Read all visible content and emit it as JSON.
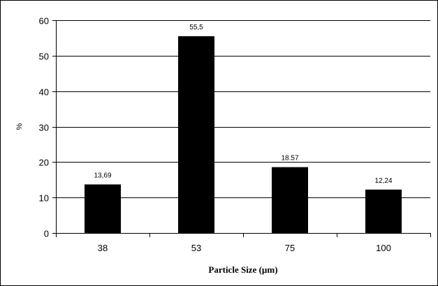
{
  "chart_data": {
    "type": "bar",
    "categories": [
      "38",
      "53",
      "75",
      "100"
    ],
    "values": [
      13.69,
      55.5,
      18.57,
      12.24
    ],
    "data_labels": [
      "13,69",
      "55,5",
      "18.57",
      "12,24"
    ],
    "xlabel": "Particle Size (µm)",
    "ylabel": "%",
    "ylim": [
      0,
      60
    ],
    "yticks": [
      "0",
      "10",
      "20",
      "30",
      "40",
      "50",
      "60"
    ],
    "grid": true,
    "bar_color": "#000000"
  }
}
